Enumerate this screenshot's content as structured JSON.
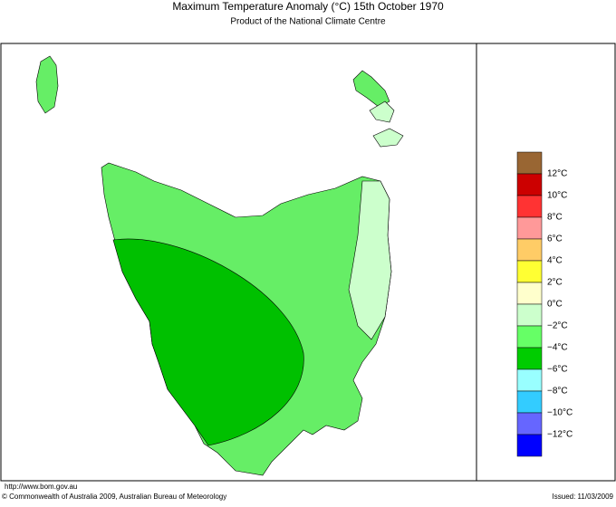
{
  "header": {
    "title": "Maximum Temperature Anomaly (°C)  15th October 1970",
    "subtitle": "Product of the National Climate Centre"
  },
  "legend": {
    "colors": [
      "#996633",
      "#cc0000",
      "#ff3333",
      "#ff9999",
      "#ffcc66",
      "#ffff33",
      "#ffffcc",
      "#ccffcc",
      "#66ff66",
      "#00cc00",
      "#99ffff",
      "#33ccff",
      "#6666ff",
      "#0000ff"
    ],
    "labels": [
      "12°C",
      "10°C",
      "8°C",
      "6°C",
      "4°C",
      "2°C",
      "0°C",
      "−2°C",
      "−4°C",
      "−6°C",
      "−8°C",
      "−10°C",
      "−12°C"
    ]
  },
  "footer": {
    "url": "http://www.bom.gov.au",
    "copyright": "© Commonwealth of Australia 2009, Australian Bureau of Meteorology",
    "issued": "Issued: 11/03/2009"
  }
}
